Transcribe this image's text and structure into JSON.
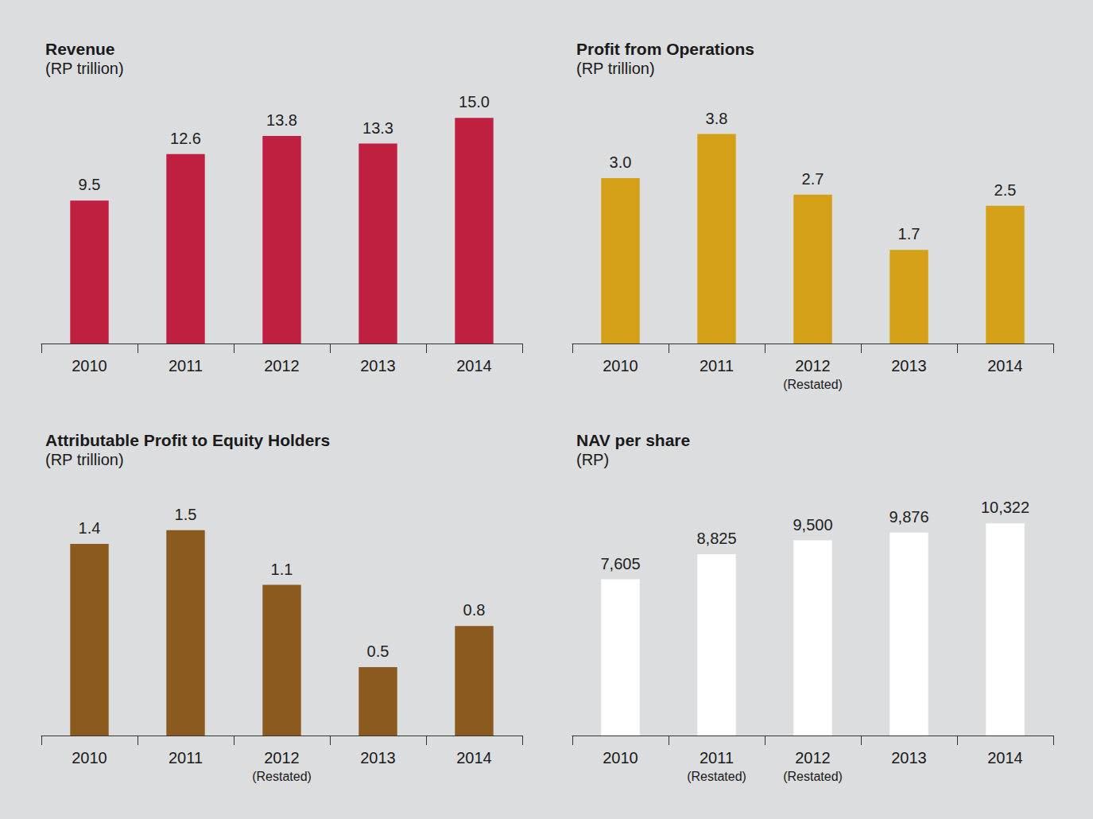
{
  "chart_data": [
    {
      "type": "bar",
      "title": "Revenue",
      "subtitle": "(RP trillion)",
      "categories": [
        "2010",
        "2011",
        "2012",
        "2013",
        "2014"
      ],
      "values": [
        9.5,
        12.6,
        13.8,
        13.3,
        15.0
      ],
      "value_labels": [
        "9.5",
        "12.6",
        "13.8",
        "13.3",
        "15.0"
      ],
      "color": "#c0203f",
      "ylim": [
        0,
        16.5
      ],
      "data_labels": true,
      "tick_labels": "x",
      "grid": false
    },
    {
      "type": "bar",
      "title": "Profit from Operations",
      "subtitle": "(RP trillion)",
      "categories": [
        "2010",
        "2011",
        "2012 (Restated)",
        "2013",
        "2014"
      ],
      "values": [
        3.0,
        3.8,
        2.7,
        1.7,
        2.5
      ],
      "value_labels": [
        "3.0",
        "3.8",
        "2.7",
        "1.7",
        "2.5"
      ],
      "color": "#d4a017",
      "ylim": [
        0,
        4.5
      ],
      "data_labels": true,
      "tick_labels": "x",
      "grid": false
    },
    {
      "type": "bar",
      "title": "Attributable Profit to Equity Holders",
      "subtitle": "(RP trillion)",
      "categories": [
        "2010",
        "2011",
        "2012 (Restated)",
        "2013",
        "2014"
      ],
      "values": [
        1.4,
        1.5,
        1.1,
        0.5,
        0.8
      ],
      "color": "#8b5a1e",
      "ylim": [
        0,
        1.8
      ],
      "data_labels": true,
      "tick_labels": "x",
      "grid": false
    },
    {
      "type": "bar",
      "title": "NAV per share",
      "subtitle": "(RP)",
      "categories": [
        "2010",
        "2011 (Restated)",
        "2012 (Restated)",
        "2013",
        "2014"
      ],
      "values": [
        7605,
        8825,
        9500,
        9876,
        10322
      ],
      "value_labels": [
        "7,605",
        "8,825",
        "9,500",
        "9,876",
        "10,322"
      ],
      "color": "#ffffff",
      "ylim": [
        0,
        12000
      ],
      "data_labels": true,
      "tick_labels": "x",
      "grid": false
    }
  ]
}
